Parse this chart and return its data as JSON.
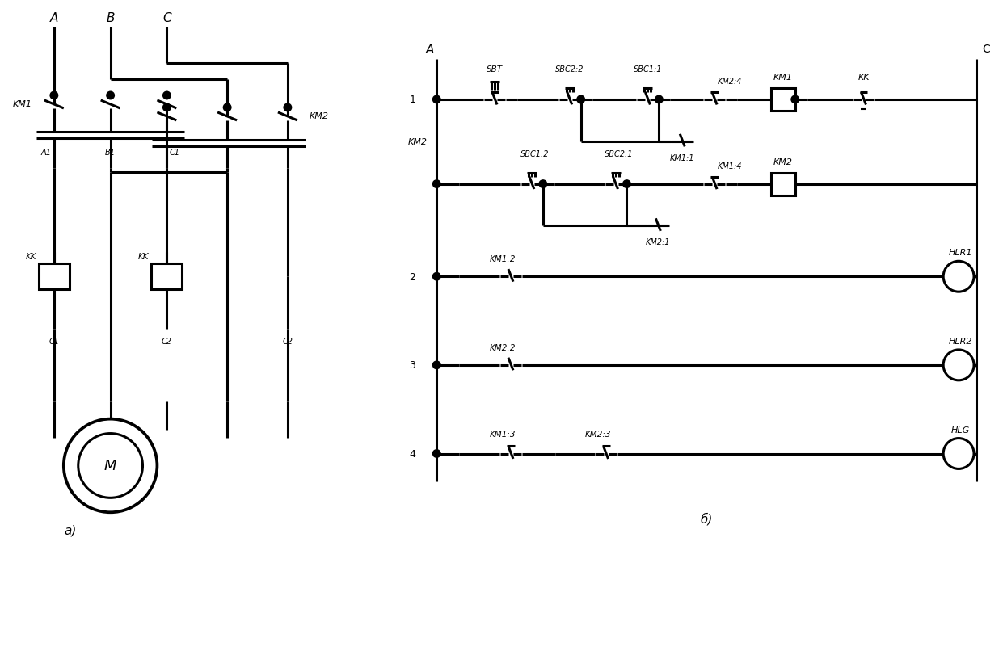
{
  "bg_color": "#ffffff",
  "line_color": "#000000",
  "lw": 2.2,
  "fig_width": 12.41,
  "fig_height": 8.28,
  "labels": {
    "A": "A",
    "B": "B",
    "C_top": "C",
    "C_right": "C",
    "A1": "A1",
    "B1": "B1",
    "C1": "C1",
    "C2a": "C2",
    "C2b": "C2",
    "KM1_left": "KM1",
    "KM2_right": "KM2",
    "KK1": "KK",
    "KK2": "KK",
    "M": "M",
    "fig_a": "a)",
    "A_right": "A",
    "n1": "1",
    "n2": "2",
    "n3": "3",
    "n4": "4",
    "KM2_left": "KM2",
    "SBT": "SBT",
    "SBC22": "SBC2:2",
    "SBC11": "SBC1:1",
    "KM24": "KM2:4",
    "KM1_coil": "KM1",
    "KK_right": "KK",
    "KM11": "KM1:1",
    "SBC12": "SBC1:2",
    "SBC21": "SBC2:1",
    "KM21": "KM2:1",
    "KM14": "KM1:4",
    "KM2_coil": "KM2",
    "KM12": "KM1:2",
    "HLR1": "HLR1",
    "KM22": "KM2:2",
    "HLR2": "HLR2",
    "KM13": "KM1:3",
    "KM23": "KM2:3",
    "HLG": "HLG",
    "fig_b": "б)"
  }
}
